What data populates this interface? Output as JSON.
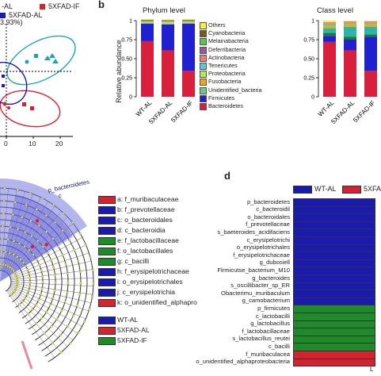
{
  "panel_a": {
    "legend": [
      {
        "label": "-AL",
        "color": "#1a1ab0"
      },
      {
        "label": "5XFAD-IF",
        "color": "#d6212f"
      },
      {
        "label": "5XFAD-AL",
        "color": "#1a1ab0"
      }
    ],
    "axis_label": "3.93%)",
    "x_ticks": [
      "0",
      "10",
      "20"
    ]
  },
  "panel_b": {
    "letter": "b",
    "chart_data": [
      {
        "type": "bar",
        "title": "Phylum level",
        "ylabel": "Relative abundance",
        "ylim": [
          0,
          1
        ],
        "y_ticks": [
          "0",
          "0.25",
          "0.50",
          "0.75",
          "1"
        ],
        "categories": [
          "WT-AL",
          "5XFAD-AL",
          "5XFAD-IF"
        ],
        "series": [
          {
            "name": "Bacteroidetes",
            "color": "#d81f3c",
            "values": [
              0.73,
              0.61,
              0.34
            ]
          },
          {
            "name": "Firmicutes",
            "color": "#2020d0",
            "values": [
              0.23,
              0.34,
              0.62
            ]
          },
          {
            "name": "Unidentified_bacteria",
            "color": "#6cc58b",
            "values": [
              0.01,
              0.01,
              0.01
            ]
          },
          {
            "name": "Fusobacteria",
            "color": "#f5a418",
            "values": [
              0.005,
              0.005,
              0.005
            ]
          },
          {
            "name": "Proteobacteria",
            "color": "#b7ea4d",
            "values": [
              0.01,
              0.015,
              0.01
            ]
          },
          {
            "name": "Tenericutes",
            "color": "#59c7d8",
            "values": [
              0.005,
              0.005,
              0.005
            ]
          },
          {
            "name": "Actinobacteria",
            "color": "#f47a7a",
            "values": [
              0.005,
              0.005,
              0.005
            ]
          },
          {
            "name": "Deferribacteria",
            "color": "#8f5b9e",
            "values": [
              0.005,
              0.005,
              0.005
            ]
          },
          {
            "name": "Melainabacteria",
            "color": "#55ca4a",
            "values": [
              0.005,
              0.005,
              0.005
            ]
          },
          {
            "name": "Cyanobacteria",
            "color": "#7a5a1a",
            "values": [
              0.005,
              0.005,
              0.005
            ]
          },
          {
            "name": "Others",
            "color": "#f7f13a",
            "values": [
              0.01,
              0.01,
              0.01
            ]
          }
        ]
      },
      {
        "type": "bar",
        "title": "Class level",
        "ylim": [
          0,
          1
        ],
        "y_ticks": [
          "0",
          "0.25",
          "0.50",
          "0.75",
          "1"
        ],
        "categories": [
          "WT-AL",
          "5XFAD-AL",
          "5XFAD-IF"
        ],
        "series": [
          {
            "color": "#d81f3c",
            "values": [
              0.72,
              0.61,
              0.34
            ]
          },
          {
            "color": "#2020d0",
            "values": [
              0.08,
              0.14,
              0.45
            ]
          },
          {
            "color": "#1f7a3a",
            "values": [
              0.04,
              0.04,
              0.03
            ]
          },
          {
            "color": "#2ab5a5",
            "values": [
              0.06,
              0.13,
              0.1
            ]
          },
          {
            "color": "#f5a418",
            "values": [
              0.03,
              0.03,
              0.03
            ]
          },
          {
            "color": "#6cc58b",
            "values": [
              0.03,
              0.02,
              0.02
            ]
          },
          {
            "color": "#f47a7a",
            "values": [
              0.02,
              0.02,
              0.02
            ]
          },
          {
            "color": "#f7f13a",
            "values": [
              0.02,
              0.01,
              0.01
            ]
          }
        ]
      }
    ]
  },
  "panel_c": {
    "clade_labels": [
      "p_bacteroidetes",
      "c"
    ],
    "legend": [
      {
        "label": "a: f_muribaculaceae",
        "color": "#d6212f"
      },
      {
        "label": "b: f_prevotellaceae",
        "color": "#1a1ab0"
      },
      {
        "label": "c: o_bacteroidales",
        "color": "#1a1ab0"
      },
      {
        "label": "d: c_bacteroidia",
        "color": "#1a1ab0"
      },
      {
        "label": "e: f_lactobacillaceae",
        "color": "#1f8a2a"
      },
      {
        "label": "f: o_lactobacillales",
        "color": "#1f8a2a"
      },
      {
        "label": "g: c_bacilli",
        "color": "#1f8a2a"
      },
      {
        "label": "h: f_erysipelotrichaceae",
        "color": "#1a1ab0"
      },
      {
        "label": "i: o_erysipelotrichales",
        "color": "#1a1ab0"
      },
      {
        "label": "j: c_erysipelotrichia",
        "color": "#1a1ab0"
      },
      {
        "label": "k: o_unidentified_alphapro",
        "color": "#d6212f"
      }
    ],
    "groups": [
      {
        "label": "WT-AL",
        "color": "#1a1ab0"
      },
      {
        "label": "5XFAD-AL",
        "color": "#d6212f"
      },
      {
        "label": "5XFAD-IF",
        "color": "#1f8a2a"
      }
    ]
  },
  "panel_d": {
    "letter": "d",
    "legend": [
      {
        "label": "WT-AL",
        "color": "#1a1ab0"
      },
      {
        "label": "5XFA",
        "color": "#d6212f"
      }
    ],
    "axis_fragment": "L",
    "chart_data": {
      "type": "bar",
      "orientation": "horizontal",
      "categories": [
        "p_bacteroidetes",
        "c_bacteroidil",
        "o_bacteroidales",
        "f_prevotellaceae",
        "s_baeteroides_acidifaciens",
        "c_erysipelotrichi",
        "o_erysipelotrichales",
        "f_erysipelotrichaceae",
        "g_dubosiell",
        "Flrmicutse_bacterium_M10",
        "g_bacteroides",
        "s_oscillibacter_sp_ER",
        "Obacterimu_muribaculum",
        "g_camobacterium",
        "p_firmicutes",
        "c_lactobacilli",
        "g_lactobacillus",
        "f_lactobacillaceae",
        "s_lactobacillus_reutei",
        "c_bacilli",
        "f_muribaculacea",
        "o_unidentified_alphaproteobacteria"
      ],
      "groups": [
        "blue",
        "blue",
        "blue",
        "blue",
        "blue",
        "blue",
        "blue",
        "blue",
        "blue",
        "blue",
        "blue",
        "blue",
        "blue",
        "blue",
        "green",
        "green",
        "green",
        "green",
        "green",
        "green",
        "red",
        "red"
      ],
      "group_colors": {
        "blue": "#1a1ab0",
        "green": "#1f8a2a",
        "red": "#d6212f"
      }
    }
  }
}
